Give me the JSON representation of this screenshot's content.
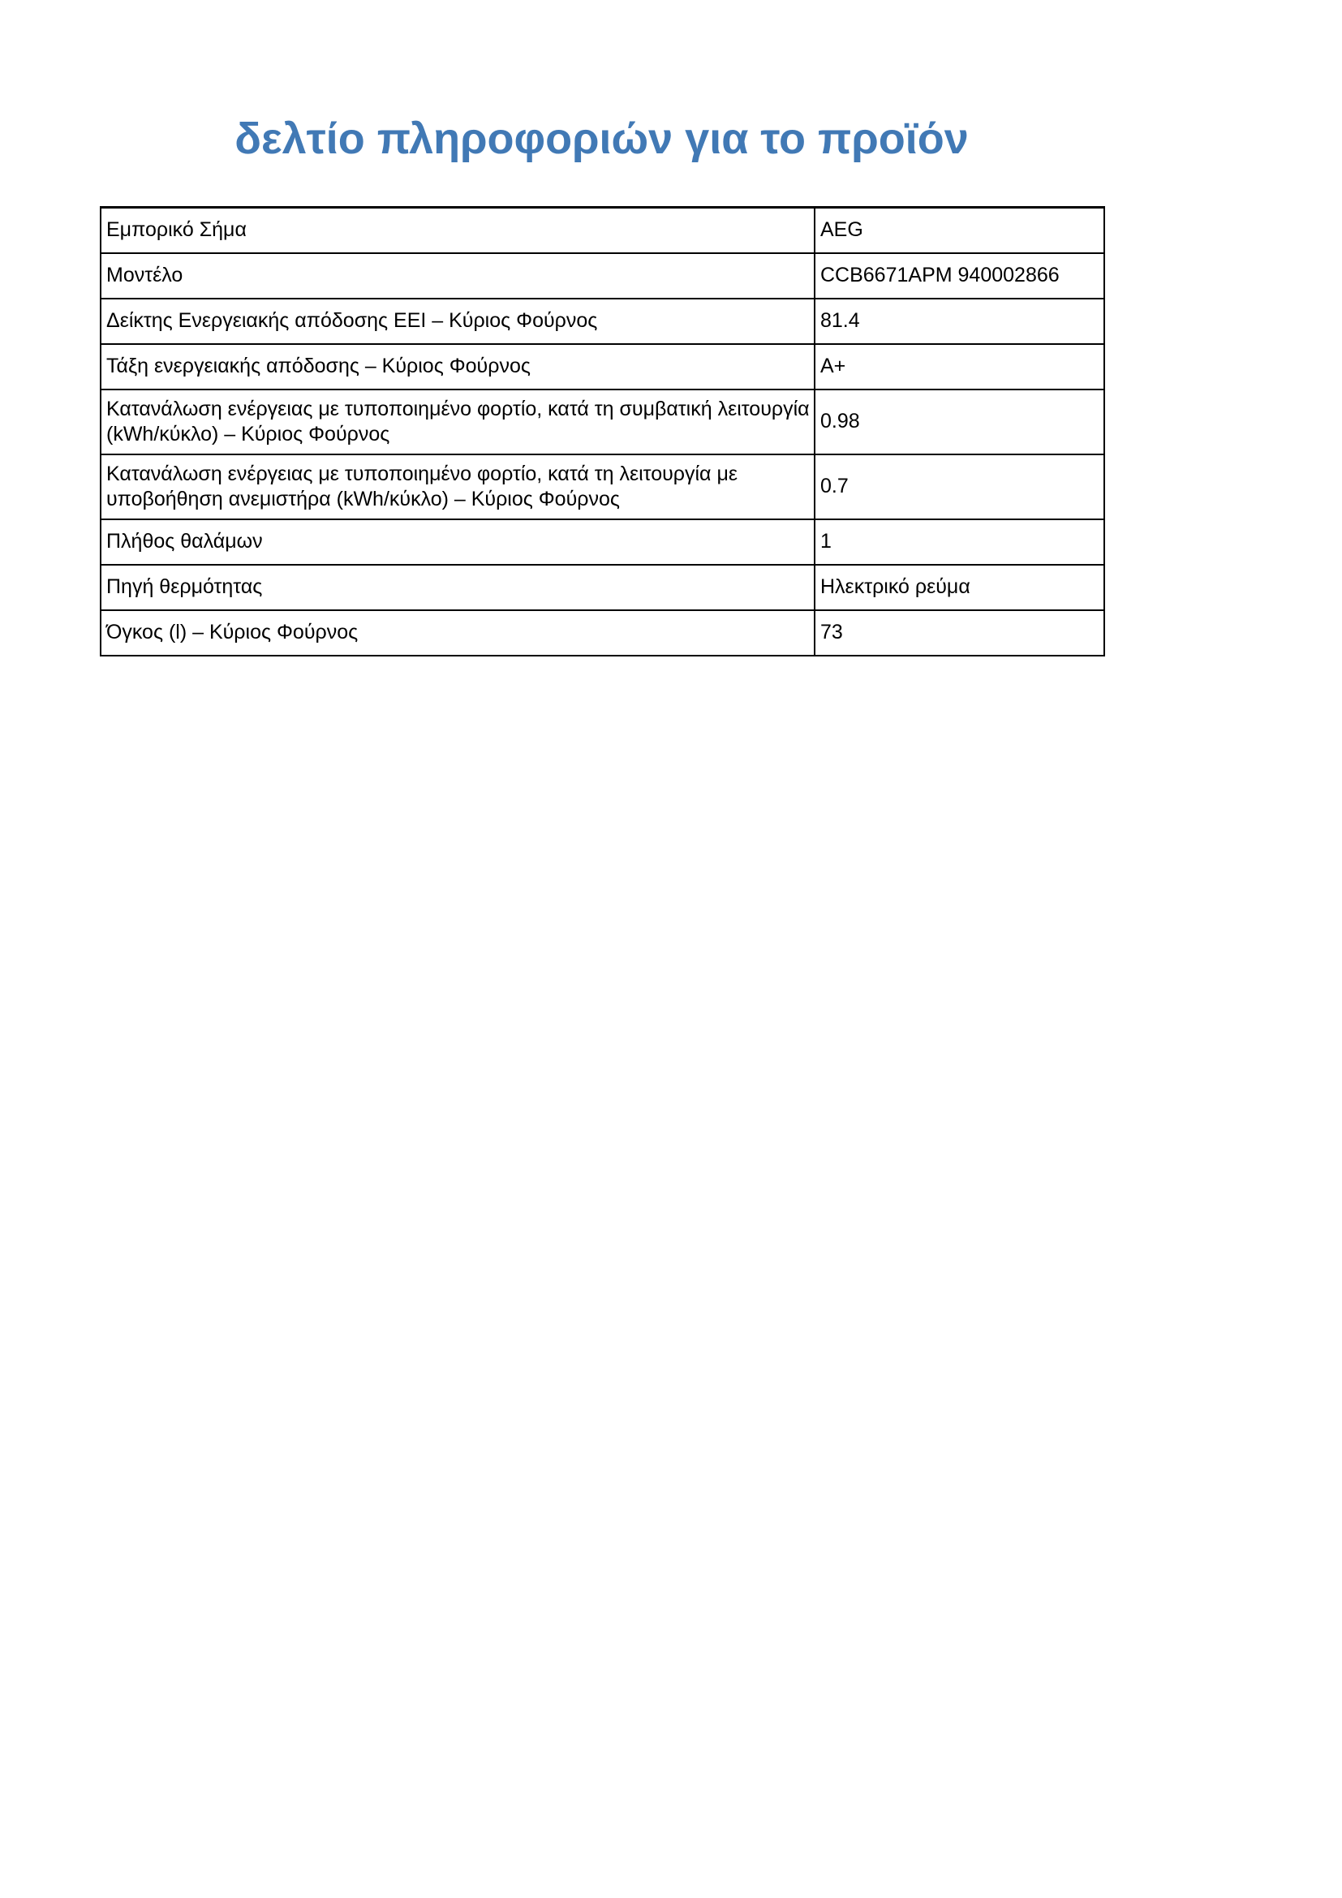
{
  "document": {
    "title": "δελτίο πληροφοριών για το προϊόν"
  },
  "colors": {
    "title_blue": "#4179B5",
    "table_border": "#000000",
    "text": "#000000",
    "background": "#FFFFFF"
  },
  "spec_table": {
    "rows": [
      {
        "label": "Εμπορικό Σήμα",
        "value": "AEG"
      },
      {
        "label": "Μοντέλο",
        "value": "CCB6671APM 940002866"
      },
      {
        "label": "Δείκτης Ενεργειακής απόδοσης EEI – Κύριος Φούρνος",
        "value": "81.4"
      },
      {
        "label": "Τάξη ενεργειακής απόδοσης – Κύριος Φούρνος",
        "value": "A+"
      },
      {
        "label": "Κατανάλωση ενέργειας με τυποποιημένο φορτίο, κατά τη συμβατική λειτουργία (kWh/κύκλο) – Κύριος Φούρνος",
        "value": "0.98"
      },
      {
        "label": "Κατανάλωση ενέργειας με τυποποιημένο φορτίο, κατά τη λειτουργία με υποβοήθηση ανεμιστήρα (kWh/κύκλο) – Κύριος Φούρνος",
        "value": "0.7"
      },
      {
        "label": "Πλήθος θαλάμων",
        "value": "1"
      },
      {
        "label": "Πηγή θερμότητας",
        "value": "Ηλεκτρικό ρεύμα"
      },
      {
        "label": "Όγκος (l) – Κύριος Φούρνος",
        "value": "73"
      }
    ]
  }
}
